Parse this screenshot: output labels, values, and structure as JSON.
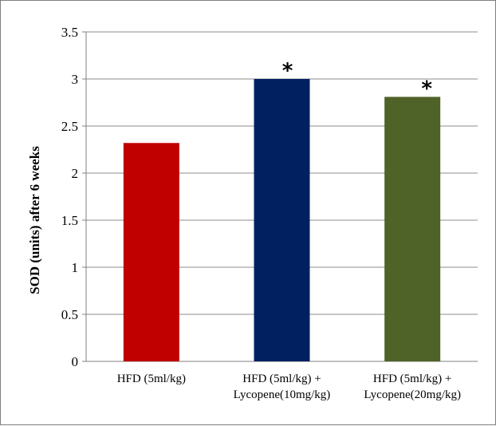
{
  "chart_data": {
    "type": "bar",
    "title": "",
    "xlabel": "",
    "ylabel": "SOD (units) after 6 weeks",
    "ylim": [
      0,
      3.5
    ],
    "yticks": [
      "0",
      "0.5",
      "1",
      "1.5",
      "2",
      "2.5",
      "3",
      "3.5"
    ],
    "grid": true,
    "legend": "none",
    "categories": [
      [
        "HFD (5ml/kg)"
      ],
      [
        "HFD (5ml/kg) +",
        "Lycopene(10mg/kg)"
      ],
      [
        "HFD (5ml/kg) +",
        "Lycopene(20mg/kg)"
      ]
    ],
    "values": [
      2.32,
      3.0,
      2.81
    ],
    "bar_colors": [
      "#c00000",
      "#002060",
      "#4f6228"
    ],
    "annotations": [
      "",
      "*",
      "*"
    ]
  }
}
